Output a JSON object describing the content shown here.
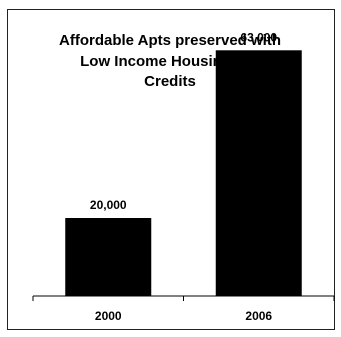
{
  "chart_data": {
    "type": "bar",
    "title_lines": [
      "Affordable Apts preserved with",
      "Low Income Housing Tax",
      "Credits"
    ],
    "categories": [
      "2000",
      "2006"
    ],
    "values": [
      20000,
      63000
    ],
    "data_labels": [
      "20,000",
      "63,000"
    ],
    "xlabel": "",
    "ylabel": "",
    "ylim": [
      0,
      70000
    ],
    "grid": false,
    "legend": "none",
    "bar_color": "#000000"
  }
}
